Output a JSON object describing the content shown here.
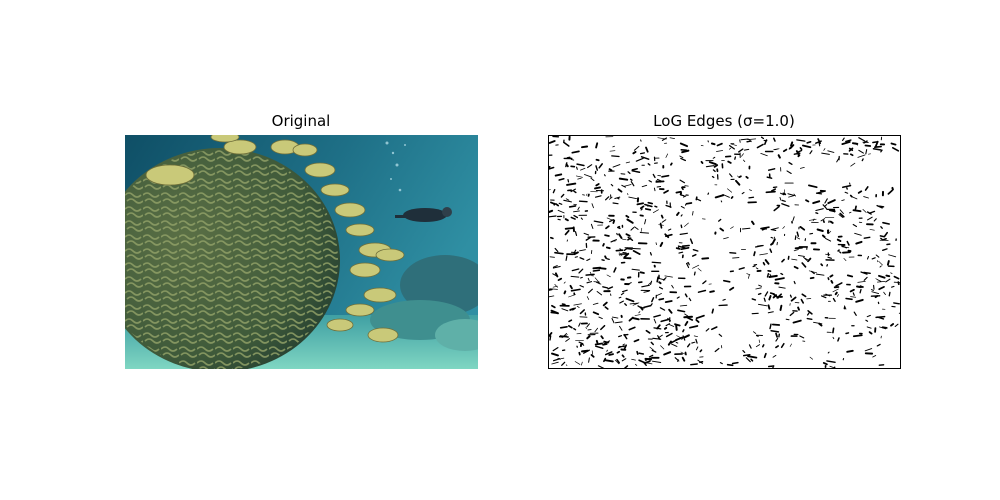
{
  "panels": [
    {
      "title": "Original"
    },
    {
      "title": "LoG Edges (σ=1.0)"
    }
  ],
  "colors": {
    "background": "#ffffff",
    "water_light": "#2f8fa3",
    "water_deep": "#0f4f66",
    "coral_body": "#3f5a3a",
    "coral_ridge": "#7f8f5a",
    "fish": "#c9c979",
    "sand": "#7fd6c2",
    "edge_ink": "#000000"
  }
}
